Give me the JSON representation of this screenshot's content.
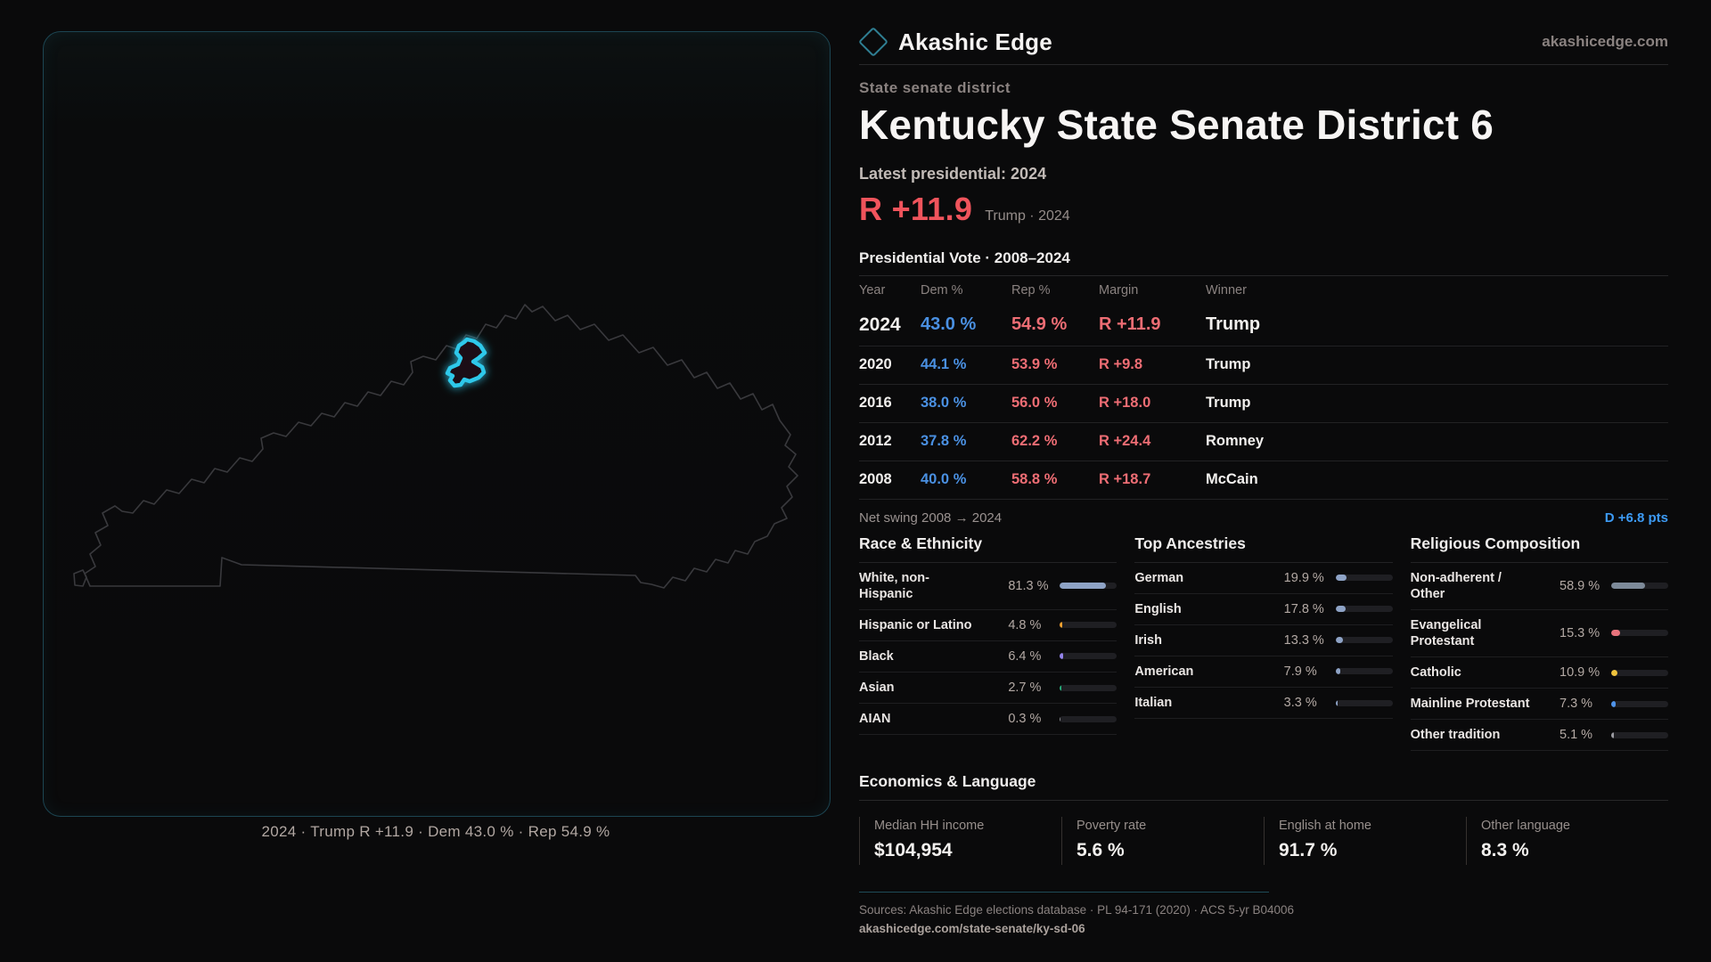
{
  "brand": {
    "name": "Akashic Edge",
    "domain": "akashicedge.com",
    "logo_icon": "diamond-outline",
    "accent_teal": "#2f7f93"
  },
  "header": {
    "eyebrow": "State senate district",
    "title": "Kentucky State Senate District 6",
    "latest_label": "Latest presidential: 2024",
    "margin_value": "R +11.9",
    "margin_context": "Trump · 2024",
    "margin_color": "#f0545c"
  },
  "map": {
    "caption": "2024 · Trump R +11.9 · Dem 43.0 % · Rep 54.9 %",
    "district_color": "#2dc8ea",
    "district_fill": "#1d0f13",
    "outline_color": "#39393d"
  },
  "vote_table": {
    "title": "Presidential Vote · 2008–2024",
    "columns": [
      "Year",
      "Dem %",
      "Rep %",
      "Margin",
      "Winner"
    ],
    "rows": [
      {
        "year": "2024",
        "dem": "43.0 %",
        "rep": "54.9 %",
        "margin": "R +11.9",
        "winner": "Trump"
      },
      {
        "year": "2020",
        "dem": "44.1 %",
        "rep": "53.9 %",
        "margin": "R +9.8",
        "winner": "Trump"
      },
      {
        "year": "2016",
        "dem": "38.0 %",
        "rep": "56.0 %",
        "margin": "R +18.0",
        "winner": "Trump"
      },
      {
        "year": "2012",
        "dem": "37.8 %",
        "rep": "62.2 %",
        "margin": "R +24.4",
        "winner": "Romney"
      },
      {
        "year": "2008",
        "dem": "40.0 %",
        "rep": "58.8 %",
        "margin": "R +18.7",
        "winner": "McCain"
      }
    ],
    "dem_color": "#4a90e2",
    "rep_color": "#ee6d74"
  },
  "net_swing": {
    "label": "Net swing 2008 → 2024",
    "value": "D +6.8 pts",
    "value_color": "#3d9bf5"
  },
  "demographics": {
    "panels": [
      {
        "title": "Race & Ethnicity",
        "rows": [
          {
            "label": "White, non-\nHispanic",
            "value": "81.3 %",
            "pct": 81.3,
            "color": "#8ea3c6"
          },
          {
            "label": "Hispanic or Latino",
            "value": "4.8 %",
            "pct": 4.8,
            "color": "#f0a030"
          },
          {
            "label": "Black",
            "value": "6.4 %",
            "pct": 6.4,
            "color": "#9383ea"
          },
          {
            "label": "Asian",
            "value": "2.7 %",
            "pct": 2.7,
            "color": "#27b07c"
          },
          {
            "label": "AIAN",
            "value": "0.3 %",
            "pct": 0.3,
            "color": "#8a8a90"
          }
        ]
      },
      {
        "title": "Top Ancestries",
        "rows": [
          {
            "label": "German",
            "value": "19.9 %",
            "pct": 19.9,
            "color": "#8ea3c6"
          },
          {
            "label": "English",
            "value": "17.8 %",
            "pct": 17.8,
            "color": "#8ea3c6"
          },
          {
            "label": "Irish",
            "value": "13.3 %",
            "pct": 13.3,
            "color": "#8ea3c6"
          },
          {
            "label": "American",
            "value": "7.9 %",
            "pct": 7.9,
            "color": "#8ea3c6"
          },
          {
            "label": "Italian",
            "value": "3.3 %",
            "pct": 3.3,
            "color": "#8ea3c6"
          }
        ]
      },
      {
        "title": "Religious Composition",
        "rows": [
          {
            "label": "Non-adherent /\nOther",
            "value": "58.9 %",
            "pct": 58.9,
            "color": "#7d8a99"
          },
          {
            "label": "Evangelical\nProtestant",
            "value": "15.3 %",
            "pct": 15.3,
            "color": "#e8737c"
          },
          {
            "label": "Catholic",
            "value": "10.9 %",
            "pct": 10.9,
            "color": "#eec23c"
          },
          {
            "label": "Mainline Protestant",
            "value": "7.3 %",
            "pct": 7.3,
            "color": "#4f93e8"
          },
          {
            "label": "Other tradition",
            "value": "5.1 %",
            "pct": 5.1,
            "color": "#9b9ba1"
          }
        ]
      }
    ]
  },
  "economics": {
    "title": "Economics & Language",
    "stats": [
      {
        "label": "Median HH income",
        "value": "$104,954"
      },
      {
        "label": "Poverty rate",
        "value": "5.6 %"
      },
      {
        "label": "English at home",
        "value": "91.7 %"
      },
      {
        "label": "Other language",
        "value": "8.3 %"
      }
    ]
  },
  "footer": {
    "sources": "Sources: Akashic Edge elections database · PL 94-171 (2020) · ACS 5-yr B04006",
    "permalink": "akashicedge.com/state-senate/ky-sd-06"
  }
}
